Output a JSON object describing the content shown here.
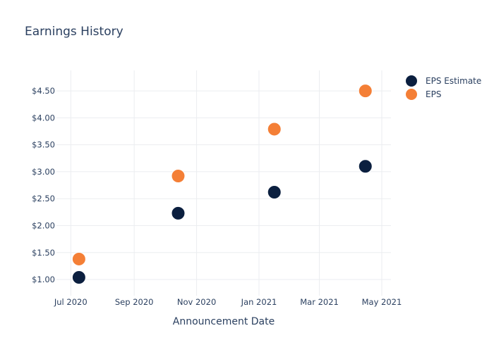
{
  "chart_data": {
    "type": "scatter",
    "title": "Earnings History",
    "xlabel": "Announcement Date",
    "ylabel": "",
    "x_tick_labels": [
      "Jul 2020",
      "Sep 2020",
      "Nov 2020",
      "Jan 2021",
      "Mar 2021",
      "May 2021"
    ],
    "x_tick_dates": [
      "2020-07-01",
      "2020-09-01",
      "2020-11-01",
      "2021-01-01",
      "2021-03-01",
      "2021-05-01"
    ],
    "xlim": [
      "2020-06-17",
      "2021-05-10"
    ],
    "y_tick_labels": [
      "$1.00",
      "$1.50",
      "$2.00",
      "$2.50",
      "$3.00",
      "$3.50",
      "$4.00",
      "$4.50"
    ],
    "y_tick_values": [
      1.0,
      1.5,
      2.0,
      2.5,
      3.0,
      3.5,
      4.0,
      4.5
    ],
    "ylim": [
      0.7,
      4.88
    ],
    "grid": true,
    "legend_position": "top-right",
    "series": [
      {
        "name": "EPS Estimate",
        "color": "#0b1f3f",
        "x": [
          "2020-07-09",
          "2020-10-14",
          "2021-01-16",
          "2021-04-15"
        ],
        "y": [
          1.04,
          2.23,
          2.62,
          3.1
        ]
      },
      {
        "name": "EPS",
        "color": "#f47f36",
        "x": [
          "2020-07-09",
          "2020-10-14",
          "2021-01-16",
          "2021-04-15"
        ],
        "y": [
          1.38,
          2.92,
          3.79,
          4.5
        ]
      }
    ]
  }
}
